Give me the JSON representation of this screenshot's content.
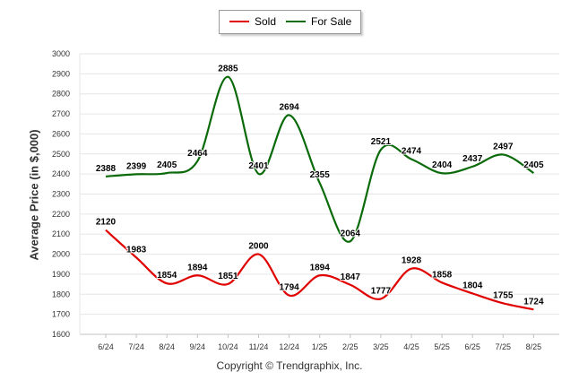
{
  "legend": [
    {
      "name": "Sold",
      "color": "#e00000"
    },
    {
      "name": "For Sale",
      "color": "#0a6a0a"
    }
  ],
  "copyright": "Copyright © Trendgraphix, Inc.",
  "chart_data": {
    "type": "line",
    "title": "",
    "xlabel": "",
    "ylabel": "Average Price (in $,000)",
    "ylim": [
      1600,
      3000
    ],
    "yticks": [
      1600,
      1700,
      1800,
      1900,
      2000,
      2100,
      2200,
      2300,
      2400,
      2500,
      2600,
      2700,
      2800,
      2900,
      3000
    ],
    "categories": [
      "6/24",
      "7/24",
      "8/24",
      "9/24",
      "10/24",
      "11/24",
      "12/24",
      "1/25",
      "2/25",
      "3/25",
      "4/25",
      "5/25",
      "6/25",
      "7/25",
      "8/25"
    ],
    "grid": "horizontal",
    "legend_position": "top-center",
    "series": [
      {
        "name": "Sold",
        "color": "#e00000",
        "values": [
          2120,
          1983,
          1854,
          1894,
          1851,
          2000,
          1794,
          1894,
          1847,
          1777,
          1928,
          1858,
          1804,
          1755,
          1724
        ]
      },
      {
        "name": "For Sale",
        "color": "#0a6a0a",
        "values": [
          2388,
          2399,
          2405,
          2464,
          2885,
          2401,
          2694,
          2355,
          2064,
          2521,
          2474,
          2404,
          2437,
          2497,
          2405
        ]
      }
    ]
  }
}
